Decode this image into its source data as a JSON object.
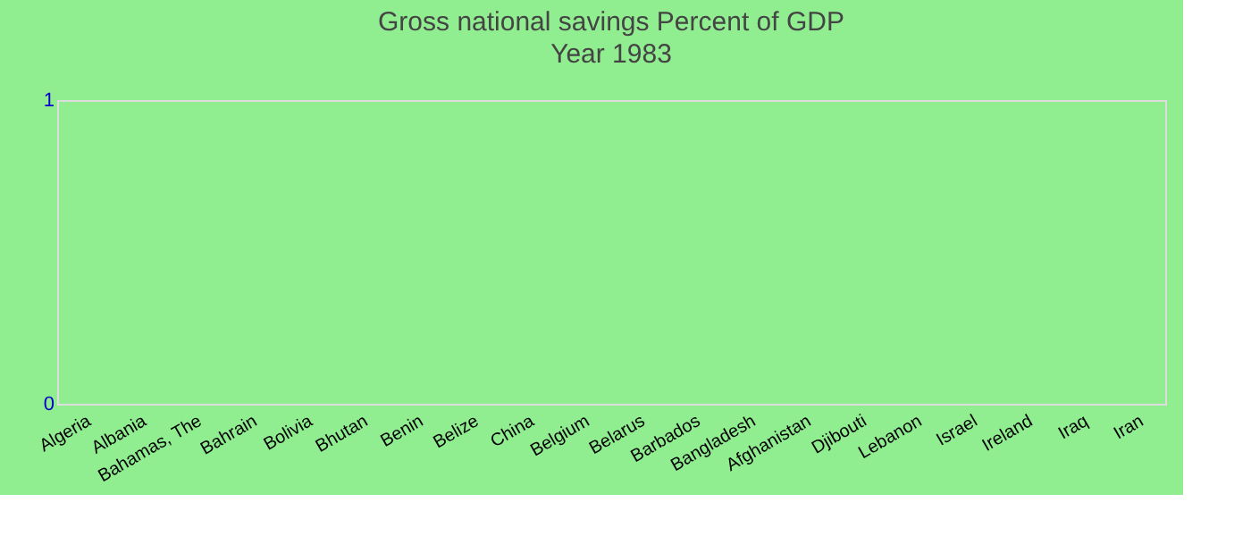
{
  "chart_data": {
    "type": "bar",
    "title": "Gross national savings  Percent of GDP",
    "subtitle": "Year 1983",
    "categories": [
      "Algeria",
      "Albania",
      "Bahamas, The",
      "Bahrain",
      "Bolivia",
      "Bhutan",
      "Benin",
      "Belize",
      "China",
      "Belgium",
      "Belarus",
      "Barbados",
      "Bangladesh",
      "Afghanistan",
      "Djibouti",
      "Lebanon",
      "Israel",
      "Ireland",
      "Iraq",
      "Iran"
    ],
    "values": [
      null,
      null,
      null,
      null,
      null,
      null,
      null,
      null,
      null,
      null,
      null,
      null,
      null,
      null,
      null,
      null,
      null,
      null,
      null,
      null
    ],
    "ylim": [
      0,
      1
    ],
    "yticks": [
      0,
      1
    ]
  }
}
